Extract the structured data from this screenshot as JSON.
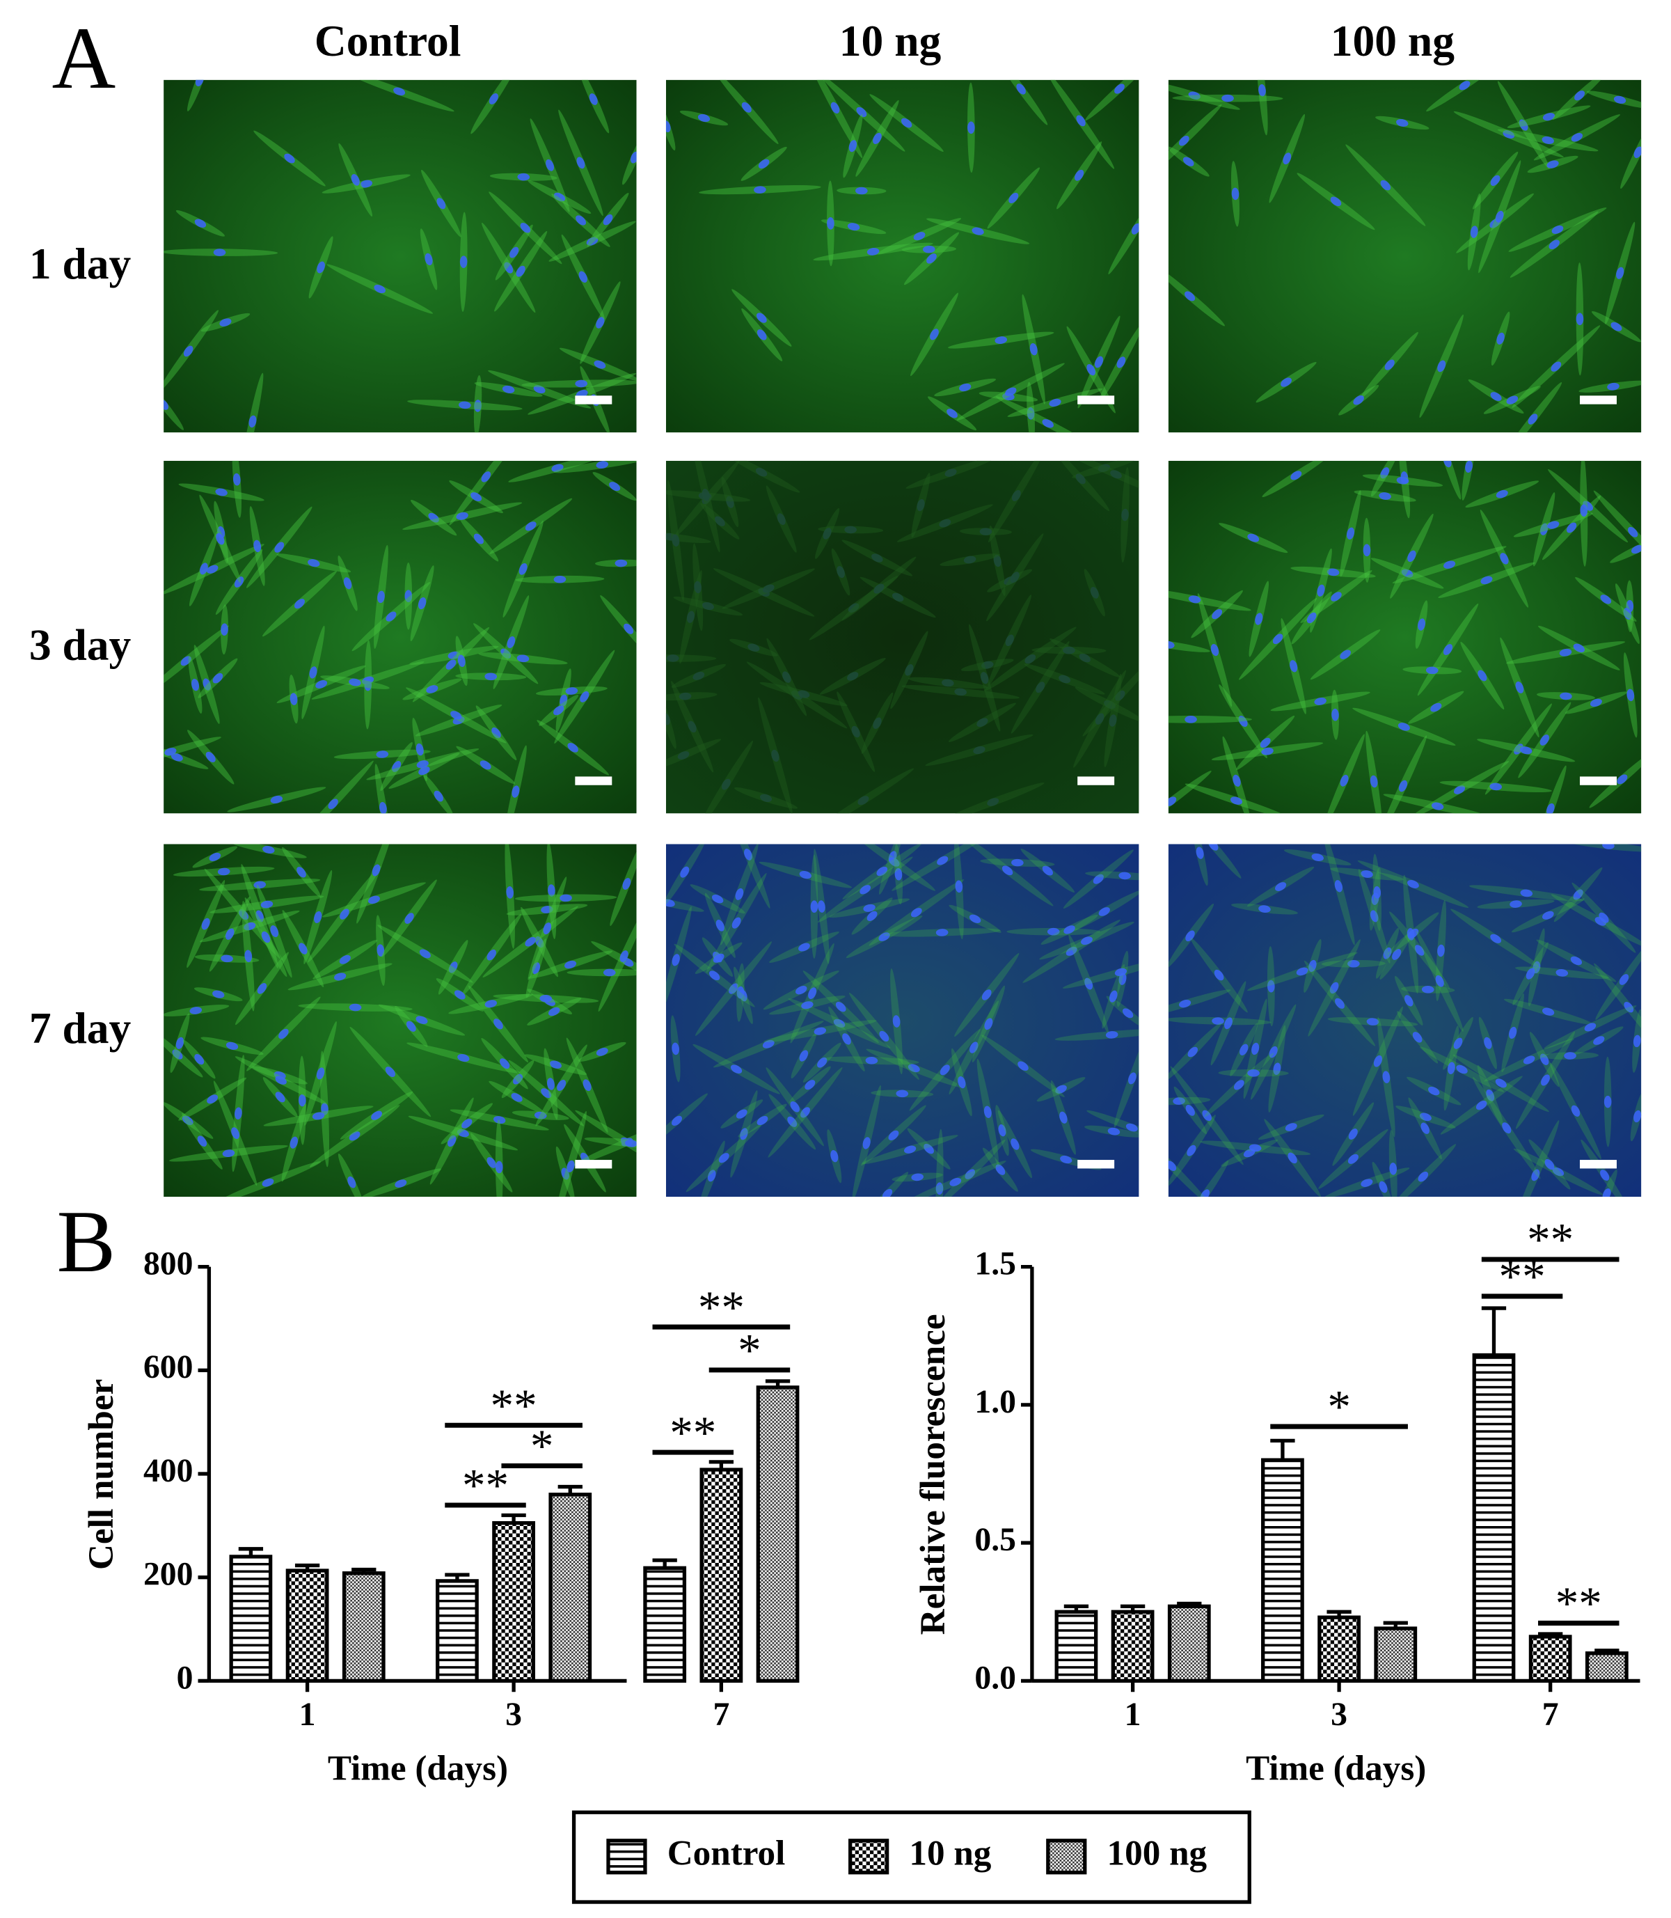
{
  "panel_a": {
    "label": "A",
    "columns": [
      "Control",
      "10 ng",
      "100 ng"
    ],
    "rows": [
      "1 day",
      "3 day",
      "7 day"
    ]
  },
  "panel_b_label": "B",
  "chart_data": [
    {
      "type": "bar",
      "ylabel": "Cell number",
      "xlabel": "Time (days)",
      "categories": [
        "1",
        "3",
        "7"
      ],
      "ylim": [
        0,
        800
      ],
      "yticks": [
        0,
        200,
        400,
        600,
        800
      ],
      "legend": "bottom",
      "series": [
        {
          "name": "Control",
          "color": "#000000",
          "pattern": "horizontal-lines",
          "values": [
            240,
            193,
            218
          ],
          "errors": [
            15,
            12,
            15
          ]
        },
        {
          "name": "10 ng",
          "color": "#000000",
          "pattern": "checker",
          "values": [
            213,
            305,
            408
          ],
          "errors": [
            10,
            15,
            15
          ]
        },
        {
          "name": "100 ng",
          "color": "#000000",
          "pattern": "dots",
          "values": [
            208,
            360,
            567
          ],
          "errors": [
            7,
            15,
            12
          ]
        }
      ],
      "annotations": [
        "**",
        "*",
        "**",
        "**",
        "*",
        "**"
      ]
    },
    {
      "type": "bar",
      "ylabel": "Relative fluorescence",
      "xlabel": "Time (days)",
      "categories": [
        "1",
        "3",
        "7"
      ],
      "ylim": [
        0,
        1.5
      ],
      "yticks": [
        {
          "value": 0,
          "label": "0.0"
        },
        0.5,
        {
          "value": 1,
          "label": "1.0"
        },
        1.5
      ],
      "series": [
        {
          "name": "Control",
          "color": "#000000",
          "pattern": "horizontal-lines",
          "values": [
            0.25,
            0.8,
            1.18
          ],
          "errors": [
            0.02,
            0.07,
            0.17
          ]
        },
        {
          "name": "10 ng",
          "color": "#000000",
          "pattern": "checker",
          "values": [
            0.25,
            0.23,
            0.16
          ],
          "errors": [
            0.02,
            0.02,
            0.01
          ]
        },
        {
          "name": "100 ng",
          "color": "#000000",
          "pattern": "dots",
          "values": [
            0.27,
            0.19,
            0.1
          ],
          "errors": [
            0.01,
            0.02,
            0.01
          ]
        }
      ],
      "annotations": [
        "*",
        "**",
        "**",
        "**"
      ]
    }
  ]
}
